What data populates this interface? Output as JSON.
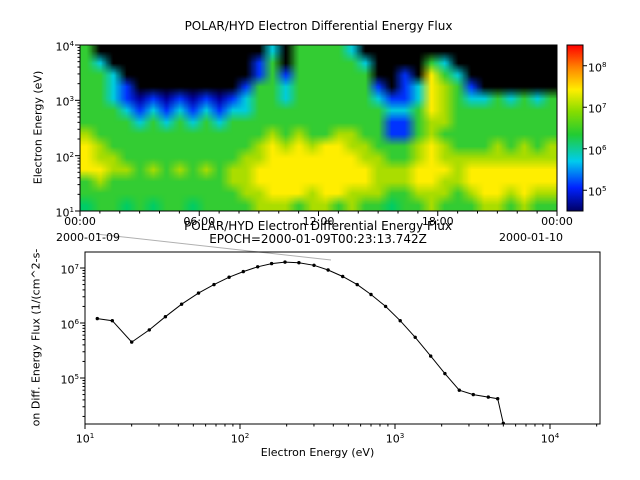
{
  "colors": {
    "background": "#ffffff",
    "frame": "#000000",
    "connector": "#b0b0b0"
  },
  "chart_data": [
    {
      "type": "heatmap",
      "title": "POLAR/HYD  Electron Differential Energy Flux",
      "ylabel": "Electron Energy (eV)",
      "x_ticks": [
        "00:00",
        "06:00",
        "12:00",
        "18:00",
        "00:00"
      ],
      "x_date_labels": [
        "2000-01-09",
        "2000-01-10"
      ],
      "x_range_hours": [
        0,
        24
      ],
      "y_tick_exponents": [
        1,
        2,
        3,
        4
      ],
      "colorbar": {
        "exponents": [
          5,
          6,
          7,
          8
        ],
        "stops": [
          [
            0,
            "#000066"
          ],
          [
            0.14,
            "#0022ff"
          ],
          [
            0.3,
            "#00ccee"
          ],
          [
            0.46,
            "#22cc33"
          ],
          [
            0.6,
            "#88dd00"
          ],
          [
            0.73,
            "#ffee00"
          ],
          [
            0.86,
            "#ff8800"
          ],
          [
            1,
            "#ff0000"
          ]
        ]
      },
      "palette": {
        "0": "#000000",
        "1": "#000099",
        "2": "#0033ff",
        "3": "#00ccdd",
        "4": "#00cc66",
        "5": "#33cc33",
        "6": "#aadd00",
        "7": "#ffee00",
        "8": "#ff8800",
        "9": "#ff0000"
      },
      "grid_note": "rows run top (10^4 eV) to bottom (10^1 eV); 36 columns span 00:00-24:00; each digit indexes palette",
      "grid": [
        "500000000000003055553000000000000000",
        "530000000000025055555300005300000000",
        "553000000000025255555500207530000000",
        "553200000000255355555520237652000000",
        "553212121212355355555532237653353535",
        "555323232323355555555553357655555555",
        "555535353535555555555552256655555555",
        "655555555555556565566552256555555555",
        "765555555555567676776655567655565656",
        "766555555555667777777665567666666666",
        "776656565656677777777766677767777777",
        "565555555556677777777766677667777777",
        "555555555555667776776665566656776766",
        "455454554555566656656554556555665655"
      ]
    },
    {
      "type": "line",
      "title": "POLAR/HYD  Electron Differential Energy Flux",
      "subtitle": "EPOCH=2000-01-09T00:23:13.742Z",
      "xlabel": "Electron Energy (eV)",
      "ylabel": "on Diff. Energy Flux (1/(cm^2-s-",
      "x_tick_exponents": [
        1,
        2,
        3,
        4
      ],
      "y_tick_exponents": [
        5,
        6,
        7
      ],
      "xlim": [
        10,
        21000
      ],
      "ylim": [
        14000,
        20000000
      ],
      "x": [
        12,
        15,
        20,
        26,
        33,
        42,
        54,
        68,
        85,
        105,
        130,
        160,
        195,
        240,
        300,
        370,
        460,
        570,
        700,
        870,
        1080,
        1350,
        1700,
        2100,
        2600,
        3200,
        4000,
        4600,
        5000
      ],
      "y": [
        1200000,
        1100000,
        450000,
        750000,
        1300000,
        2200000,
        3500000,
        5000000,
        6800000,
        8600000,
        10500000,
        12000000,
        12800000,
        12500000,
        11200000,
        9200000,
        7000000,
        5000000,
        3300000,
        2000000,
        1100000,
        550000,
        250000,
        120000,
        60000,
        50000,
        45000,
        42000,
        15000
      ]
    }
  ]
}
